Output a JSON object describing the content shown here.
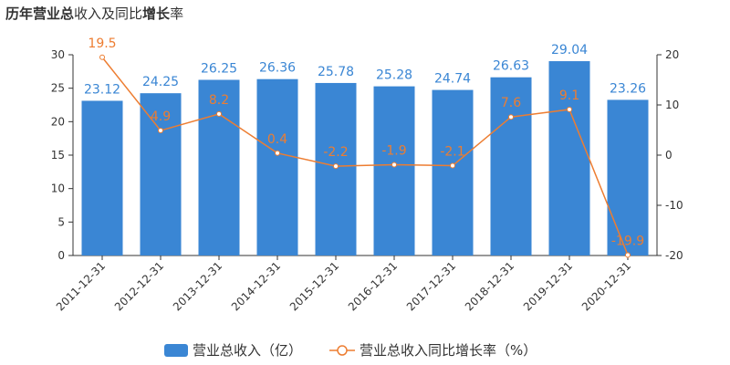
{
  "title": {
    "full": "历年营业总收入及同比增长率",
    "parts": [
      {
        "text": "历年",
        "bold": true
      },
      {
        "text": "营业总",
        "bold": true
      },
      {
        "text": "收入及同比",
        "bold": false
      },
      {
        "text": "增长",
        "bold": true
      },
      {
        "text": "率",
        "bold": false
      }
    ]
  },
  "colors": {
    "bar": "#3a86d4",
    "line": "#ed7d31",
    "axis": "#333333"
  },
  "chart_data": {
    "type": "bar",
    "categories": [
      "2011-12-31",
      "2012-12-31",
      "2013-12-31",
      "2014-12-31",
      "2015-12-31",
      "2016-12-31",
      "2017-12-31",
      "2018-12-31",
      "2019-12-31",
      "2020-12-31"
    ],
    "series": [
      {
        "name": "营业总收入（亿）",
        "type": "bar",
        "axis": "left",
        "values": [
          23.12,
          24.25,
          26.25,
          26.36,
          25.78,
          25.28,
          24.74,
          26.63,
          29.04,
          23.26
        ],
        "labels": [
          "23.12",
          "24.25",
          "26.25",
          "26.36",
          "25.78",
          "25.28",
          "24.74",
          "26.63",
          "29.04",
          "23.26"
        ]
      },
      {
        "name": "营业总收入同比增长率（%）",
        "type": "line",
        "axis": "right",
        "values": [
          19.5,
          4.9,
          8.2,
          0.4,
          -2.2,
          -1.9,
          -2.1,
          7.6,
          9.1,
          -19.9
        ],
        "labels": [
          "19.5",
          "4.9",
          "8.2",
          "0.4",
          "-2.2",
          "-1.9",
          "-2.1",
          "7.6",
          "9.1",
          "-19.9"
        ]
      }
    ],
    "y_left": {
      "min": 0,
      "max": 30,
      "ticks": [
        "0",
        "5",
        "10",
        "15",
        "20",
        "25",
        "30"
      ]
    },
    "y_right": {
      "min": -20,
      "max": 20,
      "ticks": [
        "-20",
        "-10",
        "0",
        "10",
        "20"
      ]
    },
    "grid": false,
    "legend_position": "bottom-center"
  },
  "legend": [
    {
      "label": "营业总收入（亿）",
      "icon": "bar-swatch-icon"
    },
    {
      "label": "营业总收入同比增长率（%）",
      "icon": "line-marker-icon"
    }
  ]
}
